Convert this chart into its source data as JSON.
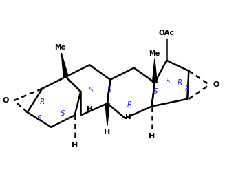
{
  "background": "#ffffff",
  "line_color": "#000000",
  "label_color": "#1a1aff",
  "lw": 1.8,
  "figsize": [
    3.59,
    2.79
  ],
  "dpi": 100,
  "xlim": [
    -0.5,
    7.8
  ],
  "ylim": [
    0.8,
    5.8
  ]
}
